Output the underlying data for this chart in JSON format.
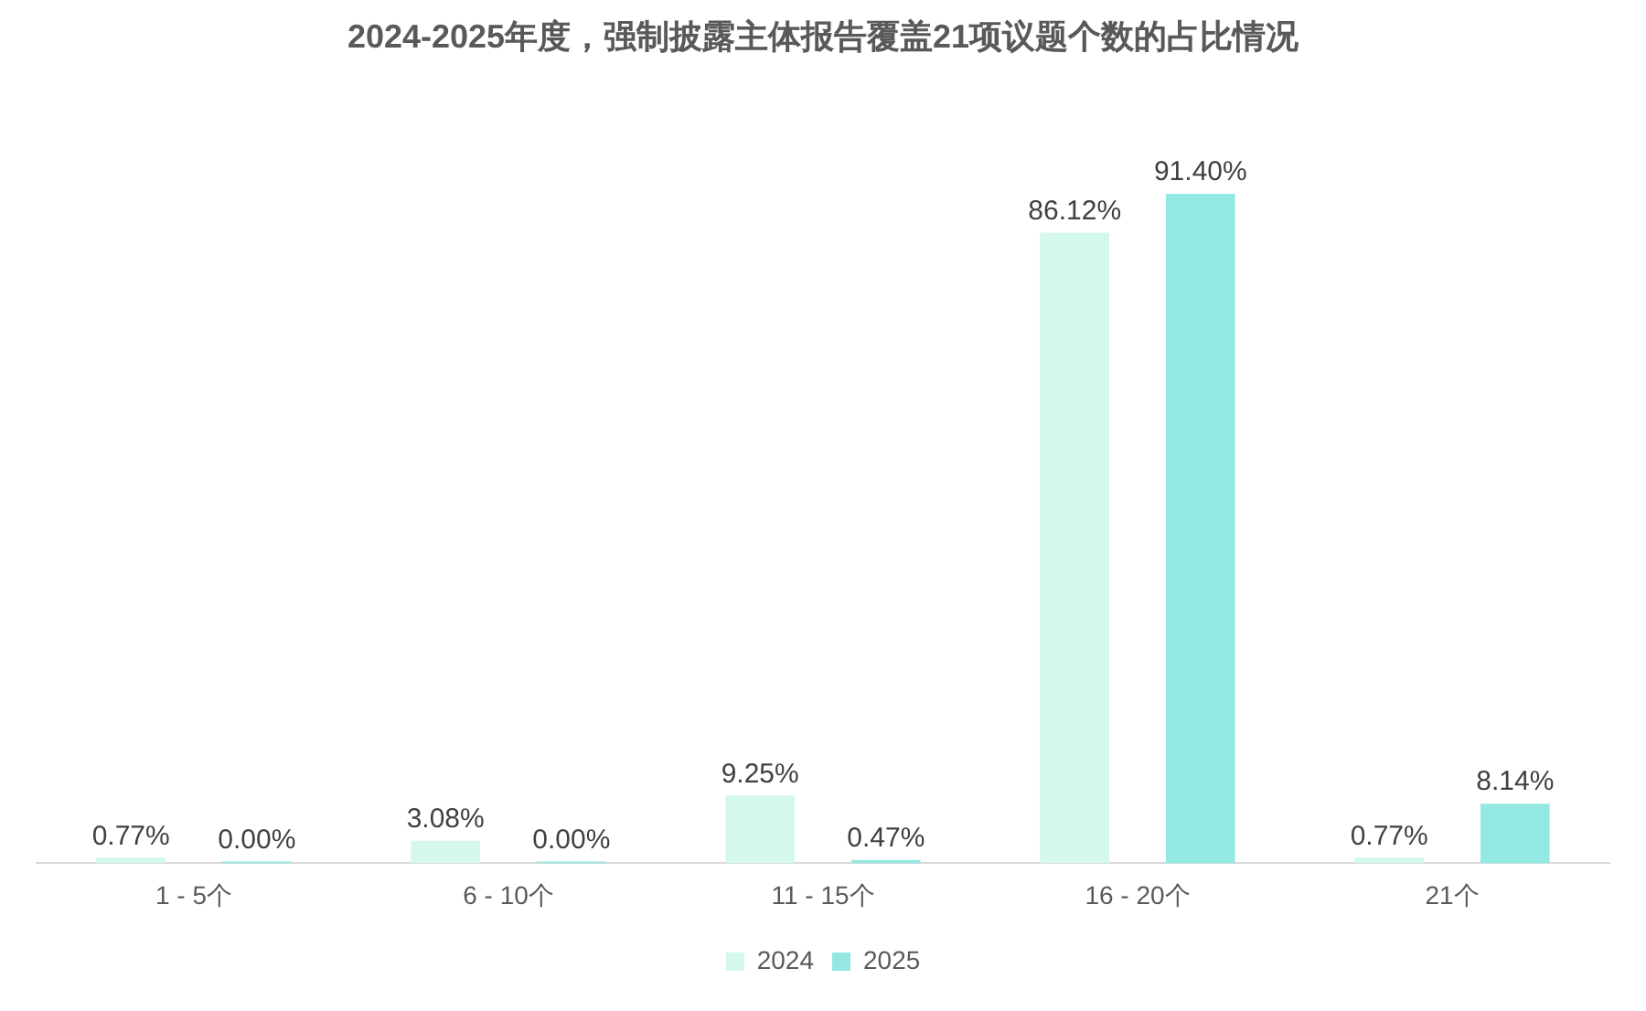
{
  "chart_data": {
    "type": "bar",
    "title": "2024-2025年度，强制披露主体报告覆盖21项议题个数的占比情况",
    "categories": [
      "1 - 5个",
      "6 - 10个",
      "11 - 15个",
      "16 - 20个",
      "21个"
    ],
    "series": [
      {
        "name": "2024",
        "color": "#d5f8ee",
        "values": [
          0.77,
          3.08,
          9.25,
          86.12,
          0.77
        ],
        "value_labels": [
          "0.77%",
          "3.08%",
          "9.25%",
          "86.12%",
          "0.77%"
        ]
      },
      {
        "name": "2025",
        "color": "#93e9e1",
        "values": [
          0,
          0,
          0.47,
          91.4,
          8.14
        ],
        "value_labels": [
          "0.00%",
          "0.00%",
          "0.47%",
          "91.40%",
          "8.14%"
        ]
      }
    ],
    "legend": "bottom",
    "grid": false
  }
}
